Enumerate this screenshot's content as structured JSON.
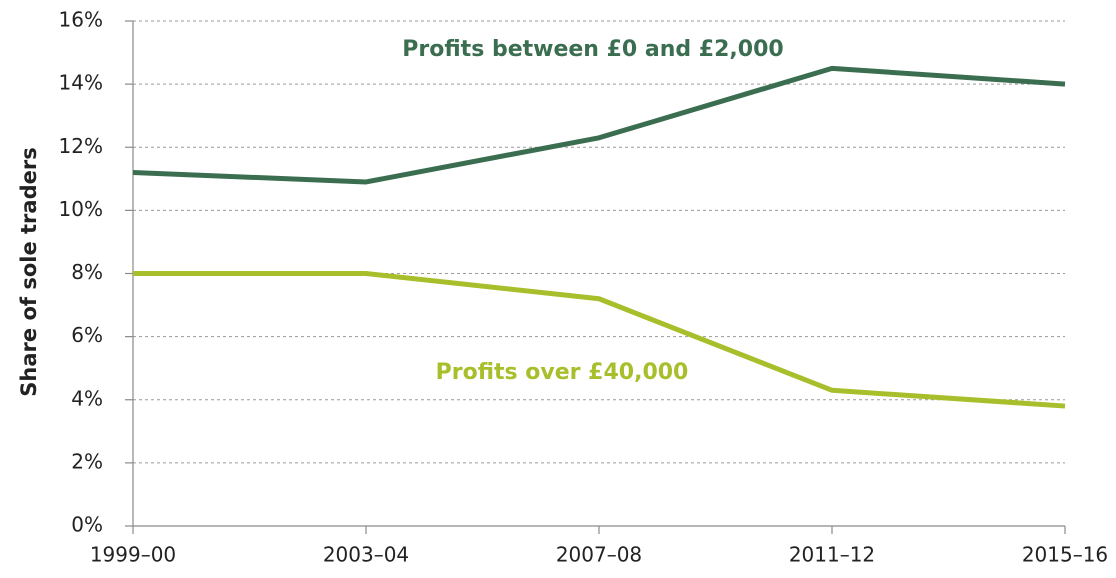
{
  "chart_data": {
    "type": "line",
    "y_label": "Share of sole traders",
    "categories": [
      "1999–00",
      "2003–04",
      "2007–08",
      "2011–12",
      "2015–16"
    ],
    "series": [
      {
        "name": "Profits between £0 and £2,000",
        "color": "#3b6e50",
        "values": [
          11.2,
          10.9,
          12.3,
          14.5,
          14.0
        ]
      },
      {
        "name": "Profits over £40,000",
        "color": "#a8be2b",
        "values": [
          8.0,
          8.0,
          7.2,
          4.3,
          3.8
        ]
      }
    ],
    "ylim": [
      0,
      16
    ],
    "yticks": [
      {
        "value": 0,
        "label": "0%"
      },
      {
        "value": 2,
        "label": "2%"
      },
      {
        "value": 4,
        "label": "4%"
      },
      {
        "value": 6,
        "label": "6%"
      },
      {
        "value": 8,
        "label": "8%"
      },
      {
        "value": 10,
        "label": "10%"
      },
      {
        "value": 12,
        "label": "12%"
      },
      {
        "value": 14,
        "label": "14%"
      },
      {
        "value": 16,
        "label": "16%"
      }
    ],
    "grid": true
  }
}
